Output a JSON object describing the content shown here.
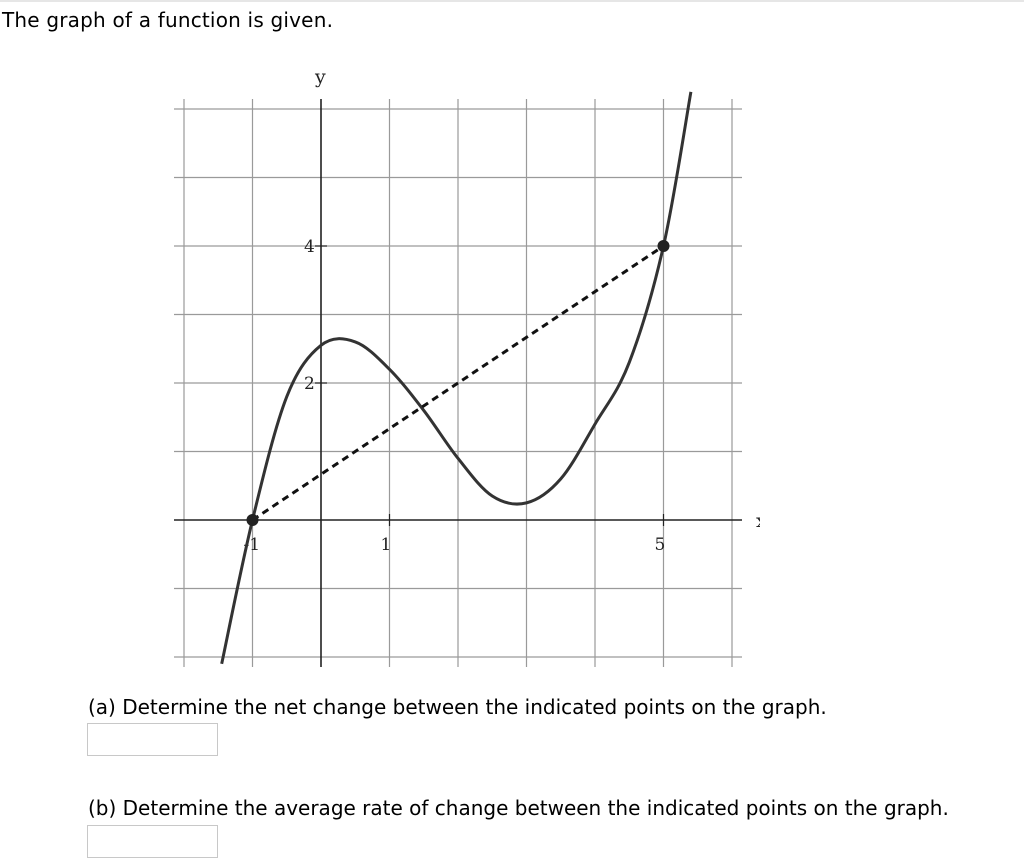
{
  "prompt": "The graph of a function is given.",
  "chart_data": {
    "type": "line",
    "xlabel": "x",
    "ylabel": "y",
    "x_ticks": [
      -1,
      1,
      5
    ],
    "y_ticks": [
      2,
      4
    ],
    "x_range": [
      -2,
      6
    ],
    "y_range": [
      -2,
      6
    ],
    "grid": true,
    "series": [
      {
        "x": [
          -1.45,
          -1,
          -0.5,
          0,
          0.5,
          1,
          1.5,
          2,
          2.5,
          3,
          3.5,
          4,
          4.5,
          5,
          5.4
        ],
        "y": [
          -2.1,
          0,
          1.8,
          2.55,
          2.6,
          2.2,
          1.6,
          0.9,
          0.35,
          0.25,
          0.6,
          1.4,
          2.3,
          4,
          6.25
        ]
      }
    ],
    "secant": {
      "x": [
        -1,
        5
      ],
      "y": [
        0,
        4
      ],
      "style": "dashed"
    },
    "points": [
      {
        "x": -1,
        "y": 0
      },
      {
        "x": 5,
        "y": 4
      }
    ]
  },
  "questions": [
    {
      "label": "(a) Determine the net change between the indicated points on the graph.",
      "value": ""
    },
    {
      "label": "(b) Determine the average rate of change between the indicated points on the graph.",
      "value": ""
    }
  ]
}
